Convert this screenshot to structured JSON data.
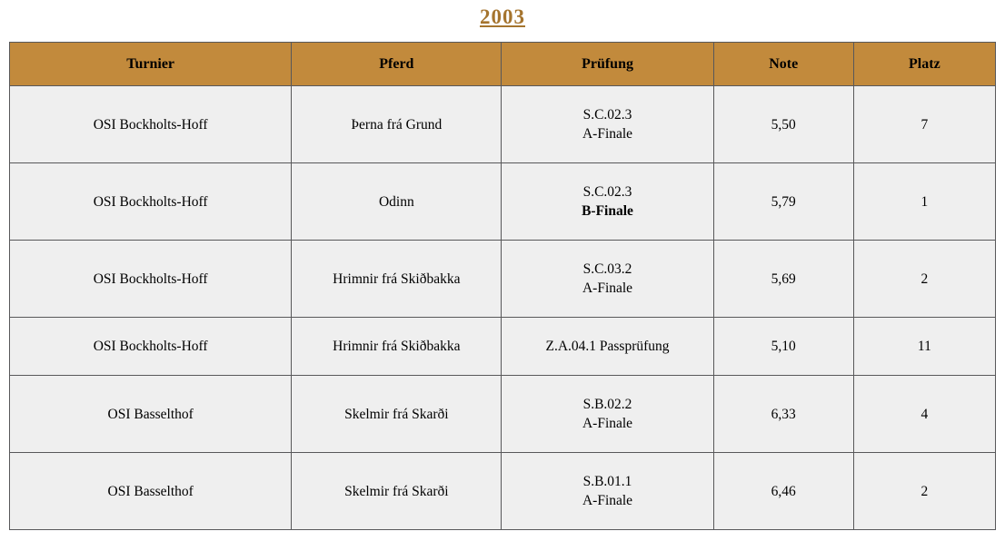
{
  "page": {
    "title": "2003"
  },
  "colors": {
    "title_text": "#a5742e",
    "header_background": "#c28a3c",
    "cell_background": "#efefef",
    "border": "#58585a",
    "body_text": "#000000"
  },
  "table": {
    "columns": [
      {
        "key": "turnier",
        "label": "Turnier"
      },
      {
        "key": "pferd",
        "label": "Pferd"
      },
      {
        "key": "pruefung",
        "label": "Prüfung"
      },
      {
        "key": "note",
        "label": "Note"
      },
      {
        "key": "platz",
        "label": "Platz"
      }
    ],
    "rows": [
      {
        "turnier": "OSI Bockholts-Hoff",
        "pferd": "Þerna frá Grund",
        "pruefung": {
          "line1": "S.C.02.3",
          "line2": "A-Finale",
          "line2_bold": false
        },
        "note": "5,50",
        "platz": "7"
      },
      {
        "turnier": "OSI Bockholts-Hoff",
        "pferd": "Odinn",
        "pruefung": {
          "line1": "S.C.02.3",
          "line2": "B-Finale",
          "line2_bold": true
        },
        "note": "5,79",
        "platz": "1"
      },
      {
        "turnier": "OSI Bockholts-Hoff",
        "pferd": "Hrimnir frá Skiðbakka",
        "pruefung": {
          "line1": "S.C.03.2",
          "line2": "A-Finale",
          "line2_bold": false
        },
        "note": "5,69",
        "platz": "2"
      },
      {
        "turnier": "OSI Bockholts-Hoff",
        "pferd": "Hrimnir frá Skiðbakka",
        "pruefung": {
          "line1": "Z.A.04.1 Passprüfung",
          "line2": "",
          "line2_bold": false
        },
        "note": "5,10",
        "platz": "11"
      },
      {
        "turnier": "OSI Basselthof",
        "pferd": "Skelmir frá Skarði",
        "pruefung": {
          "line1": "S.B.02.2",
          "line2": "A-Finale",
          "line2_bold": false
        },
        "note": "6,33",
        "platz": "4"
      },
      {
        "turnier": "OSI Basselthof",
        "pferd": "Skelmir frá Skarði",
        "pruefung": {
          "line1": "S.B.01.1",
          "line2": "A-Finale",
          "line2_bold": false
        },
        "note": "6,46",
        "platz": "2"
      }
    ]
  }
}
